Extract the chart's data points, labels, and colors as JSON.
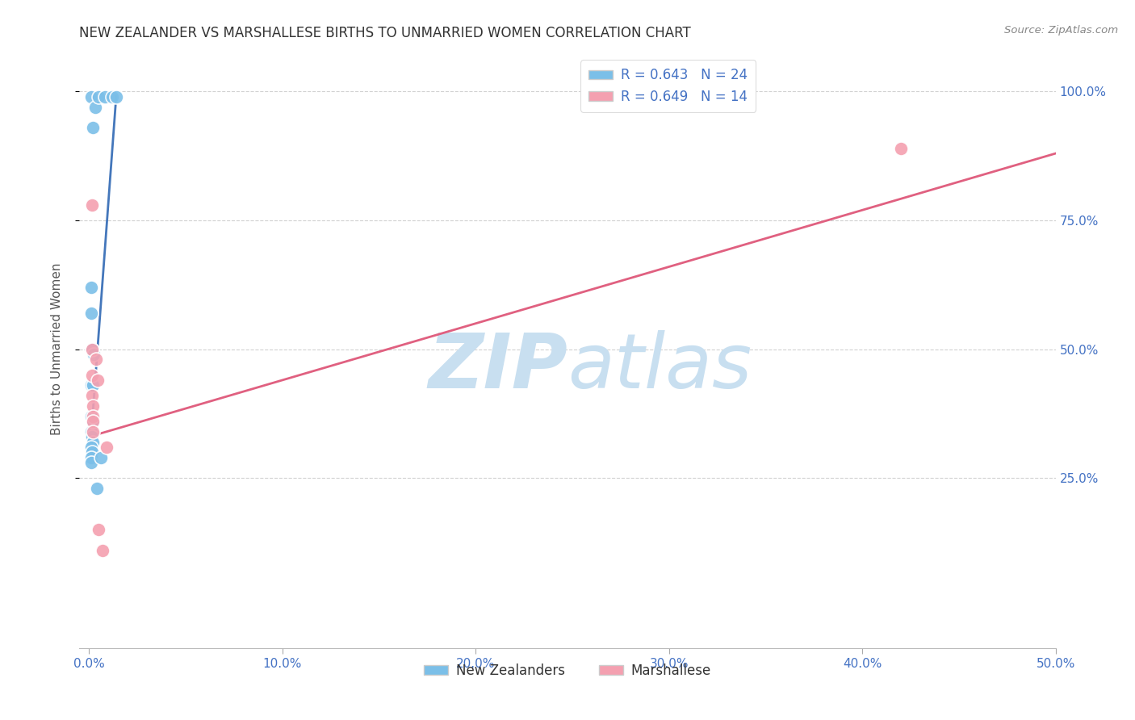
{
  "title": "NEW ZEALANDER VS MARSHALLESE BIRTHS TO UNMARRIED WOMEN CORRELATION CHART",
  "source": "Source: ZipAtlas.com",
  "ylabel_label": "Births to Unmarried Women",
  "x_ticks": [
    0,
    10,
    20,
    30,
    40,
    50
  ],
  "x_tick_labels": [
    "0.0%",
    "10.0%",
    "20.0%",
    "30.0%",
    "40.0%",
    "50.0%"
  ],
  "y_ticks": [
    25,
    50,
    75,
    100
  ],
  "y_tick_labels": [
    "25.0%",
    "50.0%",
    "75.0%",
    "100.0%"
  ],
  "xlim": [
    -0.5,
    50
  ],
  "ylim": [
    -8,
    108
  ],
  "blue_R": 0.643,
  "blue_N": 24,
  "pink_R": 0.649,
  "pink_N": 14,
  "blue_label": "New Zealanders",
  "pink_label": "Marshallese",
  "blue_color": "#7bbfe8",
  "pink_color": "#f4a0b0",
  "blue_line_color": "#4477bb",
  "pink_line_color": "#e06080",
  "blue_scatter": [
    [
      0.1,
      99
    ],
    [
      0.3,
      97
    ],
    [
      0.5,
      99
    ],
    [
      0.8,
      99
    ],
    [
      1.2,
      99
    ],
    [
      1.4,
      99
    ],
    [
      0.2,
      93
    ],
    [
      0.1,
      62
    ],
    [
      0.1,
      57
    ],
    [
      0.15,
      50
    ],
    [
      0.25,
      49
    ],
    [
      0.1,
      43
    ],
    [
      0.2,
      43
    ],
    [
      0.1,
      37
    ],
    [
      0.2,
      36
    ],
    [
      0.1,
      34
    ],
    [
      0.15,
      33
    ],
    [
      0.2,
      32
    ],
    [
      0.1,
      31
    ],
    [
      0.15,
      30
    ],
    [
      0.1,
      29
    ],
    [
      0.1,
      28
    ],
    [
      0.6,
      29
    ],
    [
      0.4,
      23
    ]
  ],
  "pink_scatter": [
    [
      0.15,
      78
    ],
    [
      0.15,
      50
    ],
    [
      0.35,
      48
    ],
    [
      0.15,
      45
    ],
    [
      0.45,
      44
    ],
    [
      0.15,
      41
    ],
    [
      0.2,
      39
    ],
    [
      0.2,
      37
    ],
    [
      0.2,
      36
    ],
    [
      0.2,
      34
    ],
    [
      0.9,
      31
    ],
    [
      0.5,
      15
    ],
    [
      0.7,
      11
    ],
    [
      42,
      89
    ]
  ],
  "blue_line_x": [
    0.1,
    1.4
  ],
  "blue_line_y": [
    33,
    99
  ],
  "pink_line_x": [
    0,
    50
  ],
  "pink_line_y": [
    33,
    88
  ],
  "watermark_zip": "ZIP",
  "watermark_atlas": "atlas",
  "watermark_color": "#c8dff0",
  "background_color": "#ffffff",
  "grid_color": "#cccccc",
  "title_color": "#333333",
  "axis_label_color": "#555555",
  "tick_label_color": "#4472c4",
  "legend_color": "#4472c4"
}
